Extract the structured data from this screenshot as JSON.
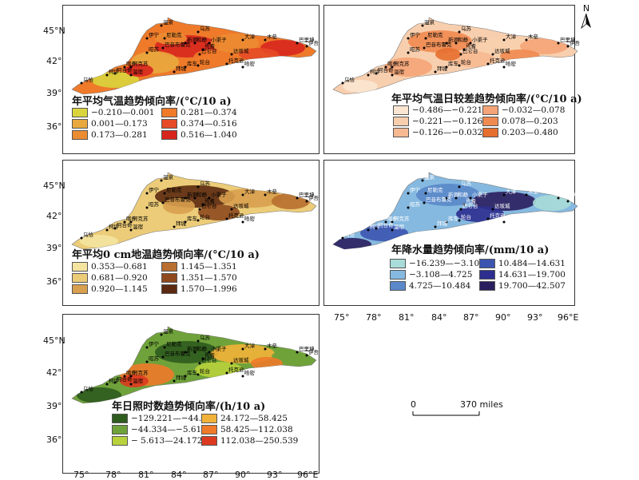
{
  "latitude_labels": [
    "45°N",
    "42°",
    "39°",
    "36°"
  ],
  "longitude_labels": [
    "75°",
    "78°",
    "81°",
    "84°",
    "87°",
    "90°",
    "93°",
    "96°E"
  ],
  "north_arrow": "N",
  "scale": {
    "zero": "0",
    "distance": "370 miles"
  },
  "cities": [
    "温泉",
    "乌苏",
    "伊宁",
    "新源",
    "巴音布鲁克",
    "尼勒克",
    "昭苏",
    "焉耆",
    "和静",
    "库车",
    "拜城",
    "阿克苏",
    "柯坪",
    "乌恰",
    "阿合奇",
    "喀什",
    "温宿",
    "轮台",
    "巴仑台",
    "达坂城",
    "小渠子",
    "大淖",
    "木垒",
    "巴里坤",
    "伊吾",
    "哈密",
    "托克逊"
  ],
  "panels": [
    {
      "title": "年平均气温趋势倾向率/(°C/10 a)",
      "legend": [
        {
          "label": "−0.210—0.001",
          "color": "#d9d43c"
        },
        {
          "label": "0.281—0.374",
          "color": "#ee7a2a"
        },
        {
          "label": "0.001—0.173",
          "color": "#e9a93e"
        },
        {
          "label": "0.374—0.516",
          "color": "#e64a26"
        },
        {
          "label": "0.173—0.281",
          "color": "#ec8c32"
        },
        {
          "label": "0.516—1.040",
          "color": "#d7261e"
        }
      ]
    },
    {
      "title": "年平均气温日较差趋势倾向率/(°C/10 a)",
      "legend": [
        {
          "label": "−0.486—−0.221",
          "color": "#fbe6d2"
        },
        {
          "label": "−0.032—0.078",
          "color": "#f4a477"
        },
        {
          "label": "−0.221—−0.126",
          "color": "#f8cfae"
        },
        {
          "label": "0.078—0.203",
          "color": "#ef8a50"
        },
        {
          "label": "−0.126—−0.032",
          "color": "#f6b991"
        },
        {
          "label": "0.203—0.480",
          "color": "#e66f2f"
        }
      ]
    },
    {
      "title": "年平均0 cm地温趋势倾向率/(°C/10 a)",
      "legend": [
        {
          "label": "0.353—0.681",
          "color": "#f4e4a0"
        },
        {
          "label": "1.145—1.351",
          "color": "#b86f2f"
        },
        {
          "label": "0.681—0.920",
          "color": "#eccc78"
        },
        {
          "label": "1.351—1.570",
          "color": "#8e4a1e"
        },
        {
          "label": "0.920—1.145",
          "color": "#d9a04f"
        },
        {
          "label": "1.570—1.996",
          "color": "#5c2a10"
        }
      ]
    },
    {
      "title": "年降水量趋势倾向率/(mm/10 a)",
      "legend": [
        {
          "label": "−16.239—−3.108",
          "color": "#a9dcd8"
        },
        {
          "label": "10.484—14.631",
          "color": "#3b55b0"
        },
        {
          "label": "−3.108—4.725",
          "color": "#86b9e0"
        },
        {
          "label": "14.631—19.700",
          "color": "#2c2f8f"
        },
        {
          "label": "4.725—10.484",
          "color": "#5a88c9"
        },
        {
          "label": "19.700—42.507",
          "color": "#2a1f5e"
        }
      ]
    },
    {
      "title": "年日照时数趋势倾向率/(h/10 a)",
      "legend": [
        {
          "label": "−129.221—−44.334",
          "color": "#2e5b1e"
        },
        {
          "label": "24.172—58.425",
          "color": "#f2b23a"
        },
        {
          "label": "−44.334—−5.613",
          "color": "#6fa23a"
        },
        {
          "label": "58.425—112.038",
          "color": "#ee7a2a"
        },
        {
          "label": "− 5.613—24.172",
          "color": "#b8d23c"
        },
        {
          "label": "112.038—250.539",
          "color": "#dc3a20"
        }
      ]
    }
  ]
}
